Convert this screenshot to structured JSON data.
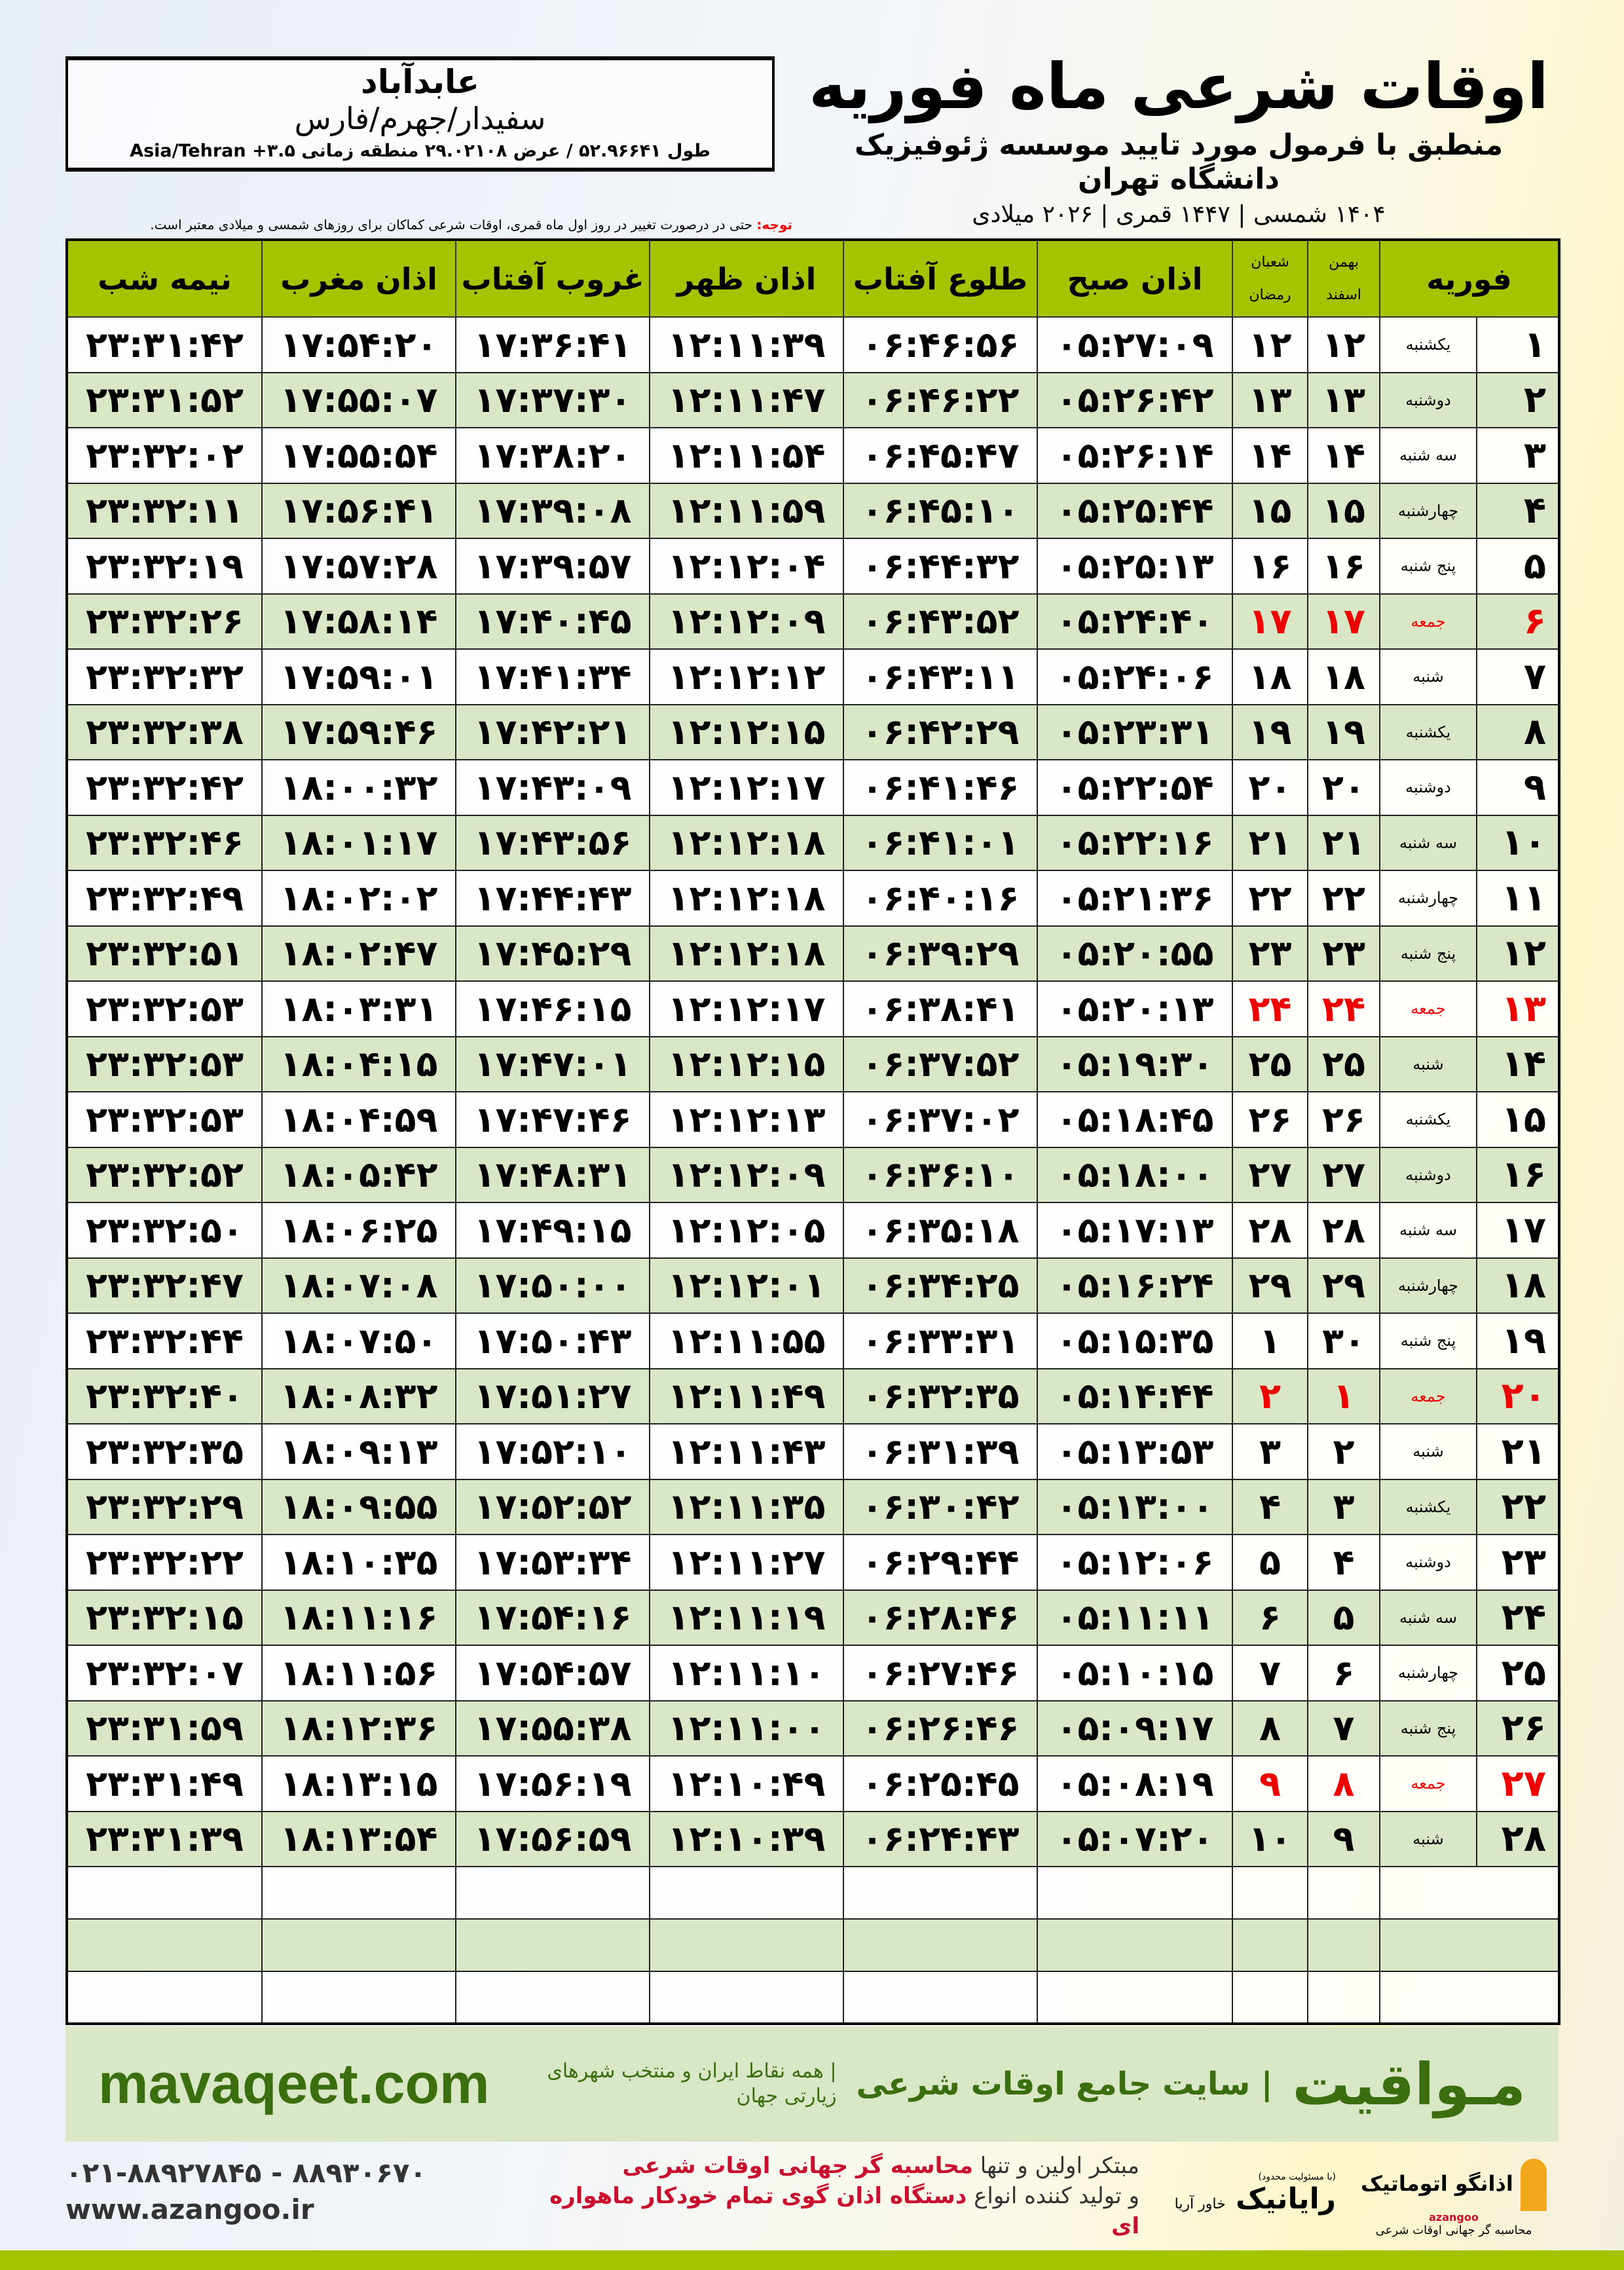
{
  "location": {
    "city": "عابدآباد",
    "region": "سفیدار/جهرم/فارس",
    "coords": "طول ۵۲.۹۶۶۴۱ / عرض ۲۹.۰۲۱۰۸ منطقه زمانی ۳.۵+ Asia/Tehran"
  },
  "header": {
    "title": "اوقات شرعی ماه فوریه",
    "subtitle": "منطبق با فرمول مورد تایید موسسه ژئوفیزیک دانشگاه تهران",
    "years": "۱۴۰۴ شمسی | ۱۴۴۷ قمری | ۲۰۲۶ میلادی"
  },
  "note": {
    "label": "توجه:",
    "text": " حتی در درصورت تغییر در روز اول ماه قمری، اوقات شرعی کماکان برای روزهای شمسی و میلادی معتبر است."
  },
  "columns": {
    "month": "فوریه",
    "shamsi_top": "بهمن",
    "shamsi_bottom": "اسفند",
    "qamari_top": "شعبان",
    "qamari_bottom": "رمضان",
    "fajr": "اذان صبح",
    "sunrise": "طلوع آفتاب",
    "dhuhr": "اذان ظهر",
    "sunset": "غروب آفتاب",
    "maghrib": "اذان مغرب",
    "midnight": "نیمه شب"
  },
  "colors": {
    "header_green": "#a5c400",
    "row_green": "#d9e7c6",
    "friday_red": "#e00000",
    "brand_green": "#3a6e0e"
  },
  "rows": [
    [
      "۱",
      "یکشنبه",
      "۱۲",
      "۱۲",
      "۰۵:۲۷:۰۹",
      "۰۶:۴۶:۵۶",
      "۱۲:۱۱:۳۹",
      "۱۷:۳۶:۴۱",
      "۱۷:۵۴:۲۰",
      "۲۳:۳۱:۴۲"
    ],
    [
      "۲",
      "دوشنبه",
      "۱۳",
      "۱۳",
      "۰۵:۲۶:۴۲",
      "۰۶:۴۶:۲۲",
      "۱۲:۱۱:۴۷",
      "۱۷:۳۷:۳۰",
      "۱۷:۵۵:۰۷",
      "۲۳:۳۱:۵۲"
    ],
    [
      "۳",
      "سه شنبه",
      "۱۴",
      "۱۴",
      "۰۵:۲۶:۱۴",
      "۰۶:۴۵:۴۷",
      "۱۲:۱۱:۵۴",
      "۱۷:۳۸:۲۰",
      "۱۷:۵۵:۵۴",
      "۲۳:۳۲:۰۲"
    ],
    [
      "۴",
      "چهارشنبه",
      "۱۵",
      "۱۵",
      "۰۵:۲۵:۴۴",
      "۰۶:۴۵:۱۰",
      "۱۲:۱۱:۵۹",
      "۱۷:۳۹:۰۸",
      "۱۷:۵۶:۴۱",
      "۲۳:۳۲:۱۱"
    ],
    [
      "۵",
      "پنج شنبه",
      "۱۶",
      "۱۶",
      "۰۵:۲۵:۱۳",
      "۰۶:۴۴:۳۲",
      "۱۲:۱۲:۰۴",
      "۱۷:۳۹:۵۷",
      "۱۷:۵۷:۲۸",
      "۲۳:۳۲:۱۹"
    ],
    [
      "۶",
      "جمعه",
      "۱۷",
      "۱۷",
      "۰۵:۲۴:۴۰",
      "۰۶:۴۳:۵۲",
      "۱۲:۱۲:۰۹",
      "۱۷:۴۰:۴۵",
      "۱۷:۵۸:۱۴",
      "۲۳:۳۲:۲۶"
    ],
    [
      "۷",
      "شنبه",
      "۱۸",
      "۱۸",
      "۰۵:۲۴:۰۶",
      "۰۶:۴۳:۱۱",
      "۱۲:۱۲:۱۲",
      "۱۷:۴۱:۳۴",
      "۱۷:۵۹:۰۱",
      "۲۳:۳۲:۳۲"
    ],
    [
      "۸",
      "یکشنبه",
      "۱۹",
      "۱۹",
      "۰۵:۲۳:۳۱",
      "۰۶:۴۲:۲۹",
      "۱۲:۱۲:۱۵",
      "۱۷:۴۲:۲۱",
      "۱۷:۵۹:۴۶",
      "۲۳:۳۲:۳۸"
    ],
    [
      "۹",
      "دوشنبه",
      "۲۰",
      "۲۰",
      "۰۵:۲۲:۵۴",
      "۰۶:۴۱:۴۶",
      "۱۲:۱۲:۱۷",
      "۱۷:۴۳:۰۹",
      "۱۸:۰۰:۳۲",
      "۲۳:۳۲:۴۲"
    ],
    [
      "۱۰",
      "سه شنبه",
      "۲۱",
      "۲۱",
      "۰۵:۲۲:۱۶",
      "۰۶:۴۱:۰۱",
      "۱۲:۱۲:۱۸",
      "۱۷:۴۳:۵۶",
      "۱۸:۰۱:۱۷",
      "۲۳:۳۲:۴۶"
    ],
    [
      "۱۱",
      "چهارشنبه",
      "۲۲",
      "۲۲",
      "۰۵:۲۱:۳۶",
      "۰۶:۴۰:۱۶",
      "۱۲:۱۲:۱۸",
      "۱۷:۴۴:۴۳",
      "۱۸:۰۲:۰۲",
      "۲۳:۳۲:۴۹"
    ],
    [
      "۱۲",
      "پنج شنبه",
      "۲۳",
      "۲۳",
      "۰۵:۲۰:۵۵",
      "۰۶:۳۹:۲۹",
      "۱۲:۱۲:۱۸",
      "۱۷:۴۵:۲۹",
      "۱۸:۰۲:۴۷",
      "۲۳:۳۲:۵۱"
    ],
    [
      "۱۳",
      "جمعه",
      "۲۴",
      "۲۴",
      "۰۵:۲۰:۱۳",
      "۰۶:۳۸:۴۱",
      "۱۲:۱۲:۱۷",
      "۱۷:۴۶:۱۵",
      "۱۸:۰۳:۳۱",
      "۲۳:۳۲:۵۳"
    ],
    [
      "۱۴",
      "شنبه",
      "۲۵",
      "۲۵",
      "۰۵:۱۹:۳۰",
      "۰۶:۳۷:۵۲",
      "۱۲:۱۲:۱۵",
      "۱۷:۴۷:۰۱",
      "۱۸:۰۴:۱۵",
      "۲۳:۳۲:۵۳"
    ],
    [
      "۱۵",
      "یکشنبه",
      "۲۶",
      "۲۶",
      "۰۵:۱۸:۴۵",
      "۰۶:۳۷:۰۲",
      "۱۲:۱۲:۱۳",
      "۱۷:۴۷:۴۶",
      "۱۸:۰۴:۵۹",
      "۲۳:۳۲:۵۳"
    ],
    [
      "۱۶",
      "دوشنبه",
      "۲۷",
      "۲۷",
      "۰۵:۱۸:۰۰",
      "۰۶:۳۶:۱۰",
      "۱۲:۱۲:۰۹",
      "۱۷:۴۸:۳۱",
      "۱۸:۰۵:۴۲",
      "۲۳:۳۲:۵۲"
    ],
    [
      "۱۷",
      "سه شنبه",
      "۲۸",
      "۲۸",
      "۰۵:۱۷:۱۳",
      "۰۶:۳۵:۱۸",
      "۱۲:۱۲:۰۵",
      "۱۷:۴۹:۱۵",
      "۱۸:۰۶:۲۵",
      "۲۳:۳۲:۵۰"
    ],
    [
      "۱۸",
      "چهارشنبه",
      "۲۹",
      "۲۹",
      "۰۵:۱۶:۲۴",
      "۰۶:۳۴:۲۵",
      "۱۲:۱۲:۰۱",
      "۱۷:۵۰:۰۰",
      "۱۸:۰۷:۰۸",
      "۲۳:۳۲:۴۷"
    ],
    [
      "۱۹",
      "پنج شنبه",
      "۳۰",
      "۱",
      "۰۵:۱۵:۳۵",
      "۰۶:۳۳:۳۱",
      "۱۲:۱۱:۵۵",
      "۱۷:۵۰:۴۳",
      "۱۸:۰۷:۵۰",
      "۲۳:۳۲:۴۴"
    ],
    [
      "۲۰",
      "جمعه",
      "۱",
      "۲",
      "۰۵:۱۴:۴۴",
      "۰۶:۳۲:۳۵",
      "۱۲:۱۱:۴۹",
      "۱۷:۵۱:۲۷",
      "۱۸:۰۸:۳۲",
      "۲۳:۳۲:۴۰"
    ],
    [
      "۲۱",
      "شنبه",
      "۲",
      "۳",
      "۰۵:۱۳:۵۳",
      "۰۶:۳۱:۳۹",
      "۱۲:۱۱:۴۳",
      "۱۷:۵۲:۱۰",
      "۱۸:۰۹:۱۳",
      "۲۳:۳۲:۳۵"
    ],
    [
      "۲۲",
      "یکشنبه",
      "۳",
      "۴",
      "۰۵:۱۳:۰۰",
      "۰۶:۳۰:۴۲",
      "۱۲:۱۱:۳۵",
      "۱۷:۵۲:۵۲",
      "۱۸:۰۹:۵۵",
      "۲۳:۳۲:۲۹"
    ],
    [
      "۲۳",
      "دوشنبه",
      "۴",
      "۵",
      "۰۵:۱۲:۰۶",
      "۰۶:۲۹:۴۴",
      "۱۲:۱۱:۲۷",
      "۱۷:۵۳:۳۴",
      "۱۸:۱۰:۳۵",
      "۲۳:۳۲:۲۲"
    ],
    [
      "۲۴",
      "سه شنبه",
      "۵",
      "۶",
      "۰۵:۱۱:۱۱",
      "۰۶:۲۸:۴۶",
      "۱۲:۱۱:۱۹",
      "۱۷:۵۴:۱۶",
      "۱۸:۱۱:۱۶",
      "۲۳:۳۲:۱۵"
    ],
    [
      "۲۵",
      "چهارشنبه",
      "۶",
      "۷",
      "۰۵:۱۰:۱۵",
      "۰۶:۲۷:۴۶",
      "۱۲:۱۱:۱۰",
      "۱۷:۵۴:۵۷",
      "۱۸:۱۱:۵۶",
      "۲۳:۳۲:۰۷"
    ],
    [
      "۲۶",
      "پنج شنبه",
      "۷",
      "۸",
      "۰۵:۰۹:۱۷",
      "۰۶:۲۶:۴۶",
      "۱۲:۱۱:۰۰",
      "۱۷:۵۵:۳۸",
      "۱۸:۱۲:۳۶",
      "۲۳:۳۱:۵۹"
    ],
    [
      "۲۷",
      "جمعه",
      "۸",
      "۹",
      "۰۵:۰۸:۱۹",
      "۰۶:۲۵:۴۵",
      "۱۲:۱۰:۴۹",
      "۱۷:۵۶:۱۹",
      "۱۸:۱۳:۱۵",
      "۲۳:۳۱:۴۹"
    ],
    [
      "۲۸",
      "شنبه",
      "۹",
      "۱۰",
      "۰۵:۰۷:۲۰",
      "۰۶:۲۴:۴۳",
      "۱۲:۱۰:۳۹",
      "۱۷:۵۶:۵۹",
      "۱۸:۱۳:۵۴",
      "۲۳:۳۱:۳۹"
    ]
  ],
  "ad": {
    "brand": "مـواقیت",
    "slogan": "| سایت جامع اوقات شرعی",
    "sub": "| همه نقاط ایران و منتخب شهرهای زیارتی جهان",
    "site": "mavaqeet.com"
  },
  "footer": {
    "line1a": "مبتکر اولین و تنها ",
    "line1b": "محاسبه گر جهانی اوقات شرعی",
    "line2a": "و تولید کننده انواع ",
    "line2b": "دستگاه اذان گوی تمام خودکار ماهواره ای",
    "phone": "۰۲۱-۸۸۹۲۷۸۴۵ - ۸۸۹۳۰۶۷۰",
    "web": "www.azangoo.ir",
    "logo_azangoo": "اذانگو اتوماتیک",
    "logo_azangoo_sub": "محاسبه گر جهانی اوقات شرعی",
    "logo_azangoo_en": "azangoo",
    "logo_rayanik": "رایانیک",
    "logo_rayanik_sub": "خاور آریا",
    "logo_rayanik_note": "(با مسئولیت محدود)"
  }
}
